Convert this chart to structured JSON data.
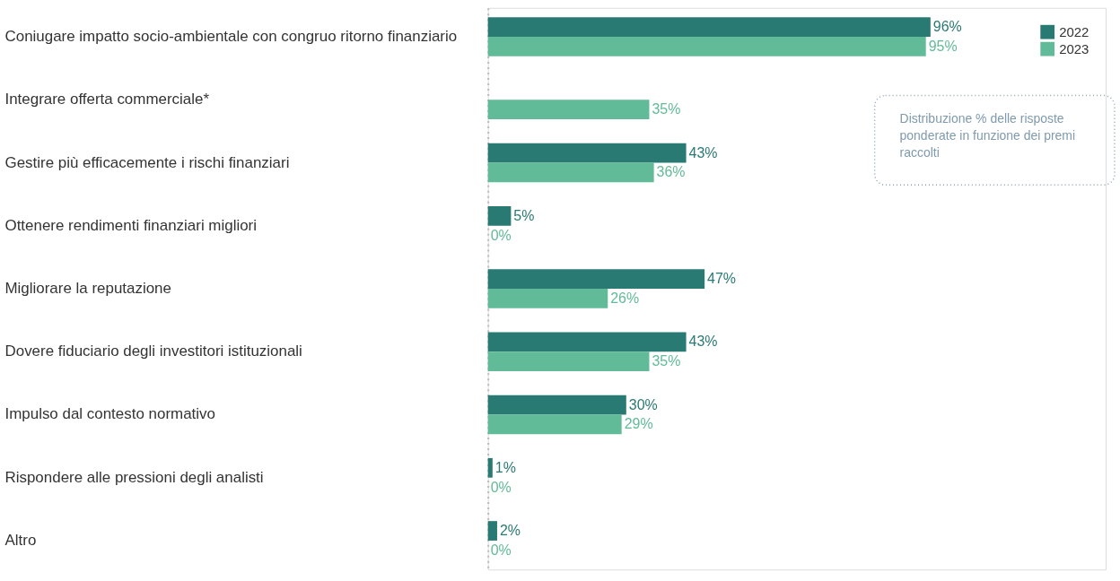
{
  "chart_data": {
    "type": "bar",
    "orientation": "horizontal",
    "categories": [
      "Coniugare impatto socio-ambientale con congruo ritorno finanziario",
      "Integrare offerta commerciale*",
      "Gestire più efficacemente i rischi finanziari",
      "Ottenere rendimenti finanziari migliori",
      "Migliorare la reputazione",
      "Dovere fiduciario degli investitori istituzionali",
      "Impulso dal contesto normativo",
      "Rispondere alle pressioni degli analisti",
      "Altro"
    ],
    "series": [
      {
        "name": "2022",
        "color": "#2a7a74",
        "values": [
          96,
          null,
          43,
          5,
          47,
          43,
          30,
          1,
          2
        ],
        "value_labels": [
          "96%",
          null,
          "43%",
          "5%",
          "47%",
          "43%",
          "30%",
          "1%",
          "2%"
        ]
      },
      {
        "name": "2023",
        "color": "#62bb98",
        "values": [
          95,
          35,
          36,
          0,
          26,
          35,
          29,
          0,
          0
        ],
        "value_labels": [
          "95%",
          "35%",
          "36%",
          "0%",
          "26%",
          "35%",
          "29%",
          "0%",
          "0%"
        ]
      }
    ],
    "xlim": [
      0,
      134
    ],
    "tick_labels": "y",
    "grid": false,
    "legend": "top right",
    "annotations": [
      "Distribuzione % delle risposte ponderate in funzione dei premi raccolti"
    ]
  }
}
